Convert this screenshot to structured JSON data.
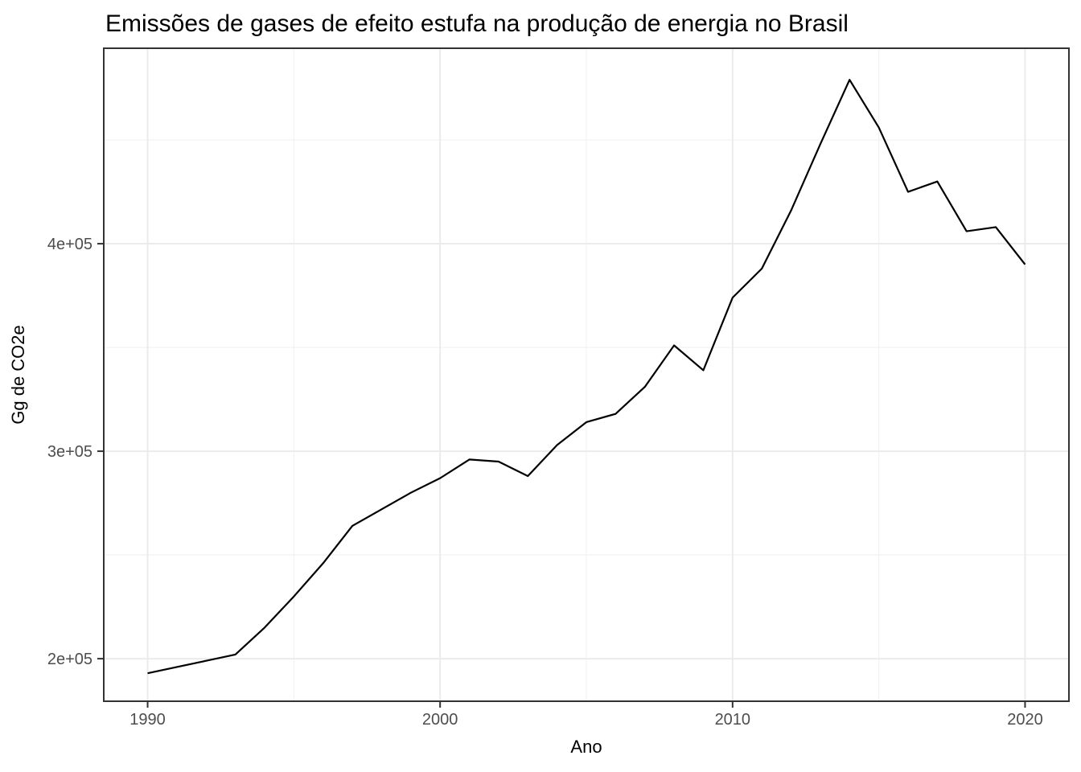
{
  "title": "Emissões de gases de efeito estufa na produção de energia no Brasil",
  "chart_data": {
    "type": "line",
    "title": "Emissões de gases de efeito estufa na produção de energia no Brasil",
    "xlabel": "Ano",
    "ylabel": "Gg de CO2e",
    "legend": "none",
    "grid": true,
    "x": [
      1990,
      1991,
      1992,
      1993,
      1994,
      1995,
      1996,
      1997,
      1998,
      1999,
      2000,
      2001,
      2002,
      2003,
      2004,
      2005,
      2006,
      2007,
      2008,
      2009,
      2010,
      2011,
      2012,
      2013,
      2014,
      2015,
      2016,
      2017,
      2018,
      2019,
      2020
    ],
    "values": [
      193000,
      196000,
      199000,
      202000,
      215000,
      230000,
      246000,
      264000,
      272000,
      280000,
      287000,
      296000,
      295000,
      288000,
      303000,
      314000,
      318000,
      331000,
      351000,
      339000,
      374000,
      388000,
      416000,
      448000,
      479000,
      456000,
      425000,
      430000,
      406000,
      408000,
      390000
    ],
    "xlim": [
      1988.5,
      2021.5
    ],
    "ylim": [
      179500,
      494200
    ],
    "x_ticks_major": [
      1990,
      2000,
      2010,
      2020
    ],
    "x_tick_labels": [
      "1990",
      "2000",
      "2010",
      "2020"
    ],
    "x_ticks_minor": [
      1995,
      2005,
      2015
    ],
    "y_ticks_major": [
      200000,
      300000,
      400000
    ],
    "y_tick_labels": [
      "2e+05",
      "3e+05",
      "4e+05"
    ],
    "y_ticks_minor": [
      250000,
      350000,
      450000
    ],
    "series_color": "#000000"
  },
  "style": {
    "background": "#ffffff",
    "panel_background": "#ffffff",
    "panel_border": "#333333",
    "grid_major": "#ebebeb",
    "grid_minor": "#f2f2f2",
    "tick_mark_color": "#333333",
    "tick_label_color": "#4d4d4d",
    "title_color": "#000000"
  }
}
